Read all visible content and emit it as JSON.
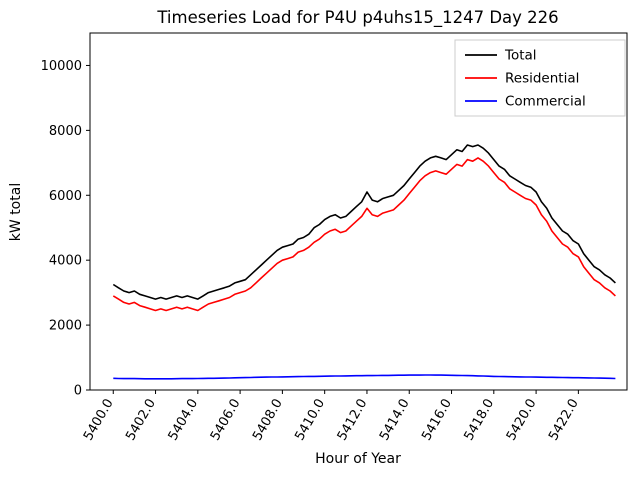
{
  "chart_data": {
    "type": "line",
    "title": "Timeseries Load for P4U p4uhs15_1247  Day 226",
    "xlabel": "Hour of Year",
    "ylabel": "kW total",
    "xlim": [
      5398.9,
      5424.3
    ],
    "ylim": [
      0,
      11000
    ],
    "grid": false,
    "legend_position": "upper right",
    "x_ticks": [
      {
        "value": 5400,
        "label": "5400.0"
      },
      {
        "value": 5402,
        "label": "5402.0"
      },
      {
        "value": 5404,
        "label": "5404.0"
      },
      {
        "value": 5406,
        "label": "5406.0"
      },
      {
        "value": 5408,
        "label": "5408.0"
      },
      {
        "value": 5410,
        "label": "5410.0"
      },
      {
        "value": 5412,
        "label": "5412.0"
      },
      {
        "value": 5414,
        "label": "5414.0"
      },
      {
        "value": 5416,
        "label": "5416.0"
      },
      {
        "value": 5418,
        "label": "5418.0"
      },
      {
        "value": 5420,
        "label": "5420.0"
      },
      {
        "value": 5422,
        "label": "5422.0"
      }
    ],
    "y_ticks": [
      {
        "value": 0,
        "label": "0"
      },
      {
        "value": 2000,
        "label": "2000"
      },
      {
        "value": 4000,
        "label": "4000"
      },
      {
        "value": 6000,
        "label": "6000"
      },
      {
        "value": 8000,
        "label": "8000"
      },
      {
        "value": 10000,
        "label": "10000"
      }
    ],
    "x": [
      5400,
      5400.25,
      5400.5,
      5400.75,
      5401,
      5401.25,
      5401.5,
      5401.75,
      5402,
      5402.25,
      5402.5,
      5402.75,
      5403,
      5403.25,
      5403.5,
      5403.75,
      5404,
      5404.25,
      5404.5,
      5404.75,
      5405,
      5405.25,
      5405.5,
      5405.75,
      5406,
      5406.25,
      5406.5,
      5406.75,
      5407,
      5407.25,
      5407.5,
      5407.75,
      5408,
      5408.25,
      5408.5,
      5408.75,
      5409,
      5409.25,
      5409.5,
      5409.75,
      5410,
      5410.25,
      5410.5,
      5410.75,
      5411,
      5411.25,
      5411.5,
      5411.75,
      5412,
      5412.25,
      5412.5,
      5412.75,
      5413,
      5413.25,
      5413.5,
      5413.75,
      5414,
      5414.25,
      5414.5,
      5414.75,
      5415,
      5415.25,
      5415.5,
      5415.75,
      5416,
      5416.25,
      5416.5,
      5416.75,
      5417,
      5417.25,
      5417.5,
      5417.75,
      5418,
      5418.25,
      5418.5,
      5418.75,
      5419,
      5419.25,
      5419.5,
      5419.75,
      5420,
      5420.25,
      5420.5,
      5420.75,
      5421,
      5421.25,
      5421.5,
      5421.75,
      5422,
      5422.25,
      5422.5,
      5422.75,
      5423,
      5423.25,
      5423.5,
      5423.75
    ],
    "series": [
      {
        "name": "Total",
        "color": "#000000",
        "values": [
          3250,
          3150,
          3050,
          3000,
          3050,
          2950,
          2900,
          2850,
          2800,
          2850,
          2800,
          2850,
          2900,
          2850,
          2900,
          2850,
          2800,
          2900,
          3000,
          3050,
          3100,
          3150,
          3200,
          3300,
          3350,
          3400,
          3550,
          3700,
          3850,
          4000,
          4150,
          4300,
          4400,
          4450,
          4500,
          4650,
          4700,
          4800,
          5000,
          5100,
          5250,
          5350,
          5400,
          5300,
          5350,
          5500,
          5650,
          5800,
          6100,
          5850,
          5800,
          5900,
          5950,
          6000,
          6150,
          6300,
          6500,
          6700,
          6900,
          7050,
          7150,
          7200,
          7150,
          7100,
          7250,
          7400,
          7350,
          7550,
          7500,
          7550,
          7450,
          7300,
          7100,
          6900,
          6800,
          6600,
          6500,
          6400,
          6300,
          6250,
          6100,
          5800,
          5600,
          5300,
          5100,
          4900,
          4800,
          4600,
          4500,
          4200,
          4000,
          3800,
          3700,
          3550,
          3450,
          3300
        ]
      },
      {
        "name": "Residential",
        "color": "#ff0000",
        "values": [
          2900,
          2800,
          2700,
          2650,
          2700,
          2600,
          2550,
          2500,
          2450,
          2500,
          2450,
          2500,
          2550,
          2500,
          2550,
          2500,
          2450,
          2550,
          2650,
          2700,
          2750,
          2800,
          2850,
          2950,
          3000,
          3050,
          3150,
          3300,
          3450,
          3600,
          3750,
          3900,
          4000,
          4050,
          4100,
          4250,
          4300,
          4400,
          4550,
          4650,
          4800,
          4900,
          4950,
          4850,
          4900,
          5050,
          5200,
          5350,
          5600,
          5400,
          5350,
          5450,
          5500,
          5550,
          5700,
          5850,
          6050,
          6250,
          6450,
          6600,
          6700,
          6750,
          6700,
          6650,
          6800,
          6950,
          6900,
          7100,
          7050,
          7150,
          7050,
          6900,
          6700,
          6500,
          6400,
          6200,
          6100,
          6000,
          5900,
          5850,
          5700,
          5400,
          5200,
          4900,
          4700,
          4500,
          4400,
          4200,
          4100,
          3800,
          3600,
          3400,
          3300,
          3150,
          3050,
          2900
        ]
      },
      {
        "name": "Commercial",
        "color": "#0000ff",
        "values": [
          360,
          355,
          350,
          350,
          350,
          348,
          345,
          345,
          345,
          345,
          345,
          345,
          348,
          350,
          350,
          352,
          355,
          358,
          360,
          362,
          365,
          368,
          370,
          375,
          380,
          382,
          385,
          390,
          395,
          398,
          400,
          402,
          405,
          408,
          410,
          412,
          415,
          418,
          420,
          422,
          425,
          428,
          430,
          432,
          435,
          438,
          440,
          442,
          445,
          445,
          448,
          450,
          450,
          452,
          455,
          455,
          458,
          460,
          460,
          462,
          462,
          460,
          458,
          455,
          452,
          450,
          448,
          445,
          440,
          435,
          430,
          425,
          420,
          415,
          412,
          410,
          408,
          405,
          402,
          400,
          398,
          395,
          392,
          390,
          388,
          385,
          382,
          380,
          378,
          375,
          372,
          370,
          368,
          365,
          360,
          355
        ]
      }
    ]
  }
}
